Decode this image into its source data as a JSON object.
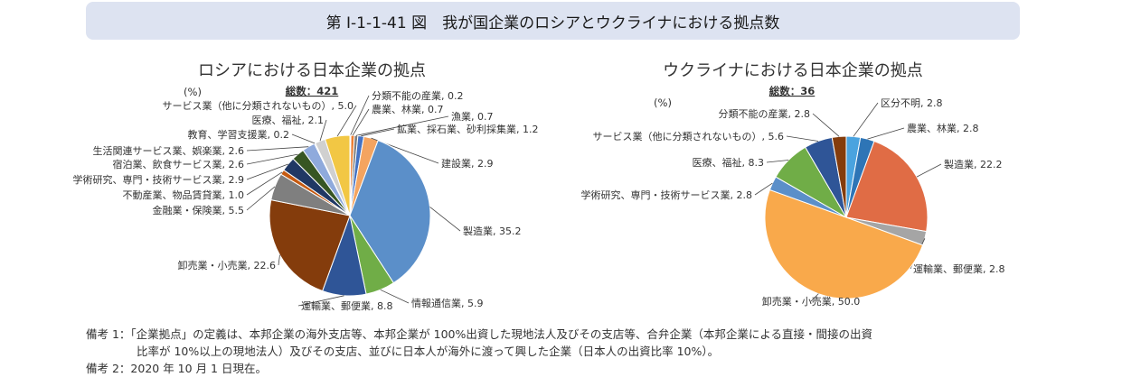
{
  "figure_title": "第 Ⅰ-1-1-41 図　我が国企業のロシアとウクライナにおける拠点数",
  "notes": [
    "備考 1：「企業拠点」の定義は、本邦企業の海外支店等、本邦企業が 100%出資した現地法人及びその支店等、合弁企業（本邦企業による直接・間接の出資",
    "比率が 10%以上の現地法人）及びその支店、並びに日本人が海外に渡って興した企業（日本人の出資比率 10%）。",
    "備考 2：2020 年 10 月 1 日現在。"
  ],
  "chart_data": [
    {
      "type": "pie",
      "title": "ロシアにおける日本企業の拠点",
      "unit_label": "(%)",
      "total_label": "総数：421",
      "slices": [
        {
          "label": "分類不能の産業",
          "value": 0.2,
          "color": "#a5a5a5"
        },
        {
          "label": "農業、林業",
          "value": 0.7,
          "color": "#ed7d31"
        },
        {
          "label": "漁業",
          "value": 0.7,
          "color": "#7f7f7f"
        },
        {
          "label": "鉱業、採石業、砂利採集業",
          "value": 1.2,
          "color": "#4472c4"
        },
        {
          "label": "建設業",
          "value": 2.9,
          "color": "#f4a460"
        },
        {
          "label": "製造業",
          "value": 35.2,
          "color": "#5b8fc9"
        },
        {
          "label": "情報通信業",
          "value": 5.9,
          "color": "#70ad47"
        },
        {
          "label": "運輸業、郵便業",
          "value": 8.8,
          "color": "#2f5597"
        },
        {
          "label": "卸売業・小売業",
          "value": 22.6,
          "color": "#843c0c"
        },
        {
          "label": "金融業・保険業",
          "value": 5.5,
          "color": "#7f7f7f"
        },
        {
          "label": "不動産業、物品賃貸業",
          "value": 1.0,
          "color": "#c55a11"
        },
        {
          "label": "学術研究、専門・技術サービス業",
          "value": 2.9,
          "color": "#203864"
        },
        {
          "label": "宿泊業、飲食サービス業",
          "value": 2.6,
          "color": "#375623"
        },
        {
          "label": "生活関連サービス業、娯楽業",
          "value": 2.6,
          "color": "#8faadc"
        },
        {
          "label": "教育、学習支援業",
          "value": 0.2,
          "color": "#264478"
        },
        {
          "label": "医療、福祉",
          "value": 2.1,
          "color": "#d0d0d0"
        },
        {
          "label": "サービス業（他に分類されないもの）",
          "value": 5.0,
          "color": "#f2c744"
        }
      ]
    },
    {
      "type": "pie",
      "title": "ウクライナにおける日本企業の拠点",
      "unit_label": "(%)",
      "total_label": "総数：36",
      "slices": [
        {
          "label": "区分不明",
          "value": 2.8,
          "color": "#4aa3df"
        },
        {
          "label": "農業、林業",
          "value": 2.8,
          "color": "#2e75b6"
        },
        {
          "label": "製造業",
          "value": 22.2,
          "color": "#e06c45"
        },
        {
          "label": "運輸業、郵便業",
          "value": 2.8,
          "color": "#a5a5a5"
        },
        {
          "label": "卸売業・小売業",
          "value": 50.0,
          "color": "#f9a94b"
        },
        {
          "label": "学術研究、専門・技術サービス業",
          "value": 2.8,
          "color": "#5b8fc9"
        },
        {
          "label": "医療、福祉",
          "value": 8.3,
          "color": "#70ad47"
        },
        {
          "label": "サービス業（他に分類されないもの）",
          "value": 5.6,
          "color": "#2f5597"
        },
        {
          "label": "分類不能の産業",
          "value": 2.8,
          "color": "#843c0c"
        }
      ]
    }
  ]
}
